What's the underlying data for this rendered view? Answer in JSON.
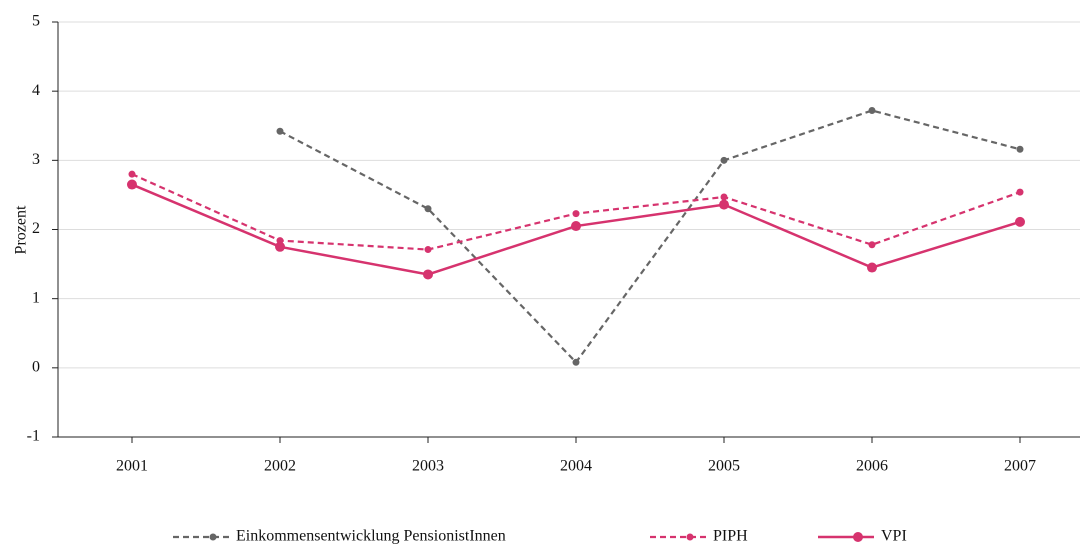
{
  "chart_data": {
    "type": "line",
    "categories": [
      "2001",
      "2002",
      "2003",
      "2004",
      "2005",
      "2006",
      "2007"
    ],
    "series": [
      {
        "name": "Einkommensentwicklung PensionistInnen",
        "color": "#666666",
        "style": "dashed",
        "values": [
          null,
          3.42,
          2.3,
          0.08,
          3.0,
          3.72,
          3.16
        ]
      },
      {
        "name": "PIPH",
        "color": "#d6336e",
        "style": "dashed",
        "values": [
          2.8,
          1.84,
          1.71,
          2.23,
          2.47,
          1.78,
          2.54
        ]
      },
      {
        "name": "VPI",
        "color": "#d6336e",
        "style": "solid",
        "values": [
          2.65,
          1.75,
          1.35,
          2.05,
          2.36,
          1.45,
          2.11
        ]
      }
    ],
    "ylabel": "Prozent",
    "ylim": [
      -1,
      5
    ],
    "yticks": [
      -1,
      0,
      1,
      2,
      3,
      4,
      5
    ],
    "grid": true,
    "legend": "bottom"
  }
}
